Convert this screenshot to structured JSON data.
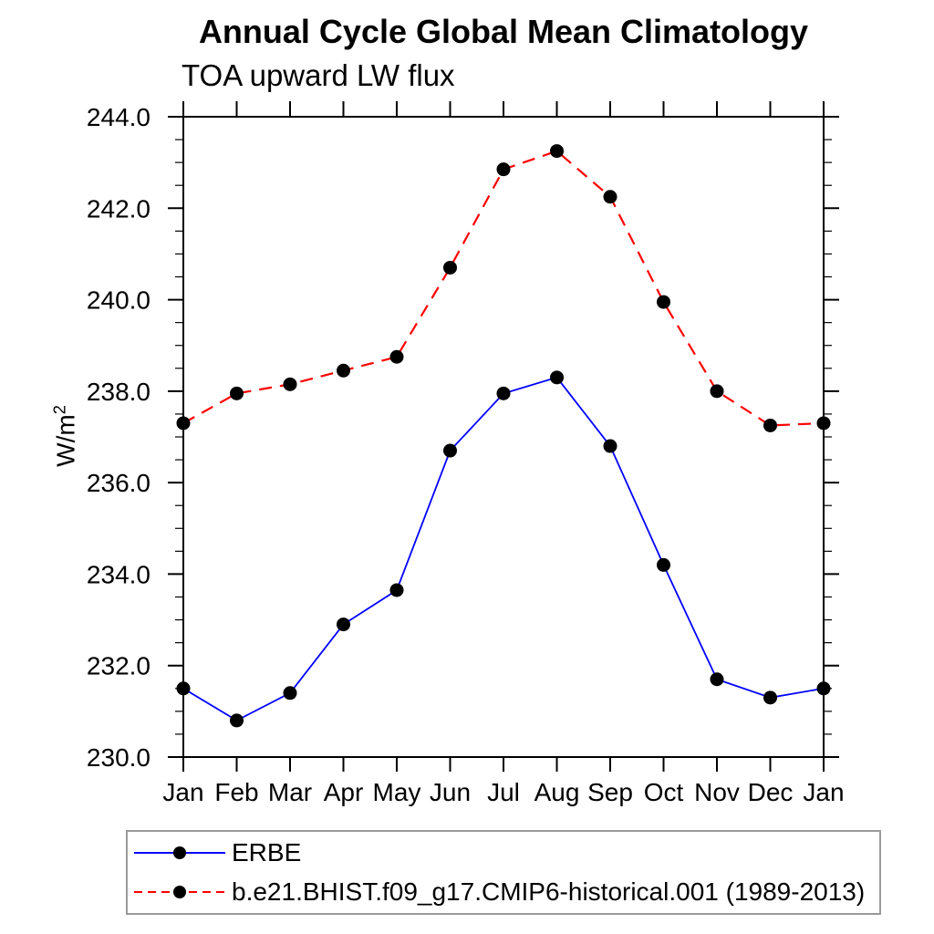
{
  "chart_data": {
    "type": "line",
    "title": "Annual Cycle Global Mean Climatology",
    "subtitle": "TOA upward LW flux",
    "ylabel_base": "W/m",
    "ylabel_sup": "2",
    "x_categories": [
      "Jan",
      "Feb",
      "Mar",
      "Apr",
      "May",
      "Jun",
      "Jul",
      "Aug",
      "Sep",
      "Oct",
      "Nov",
      "Dec",
      "Jan"
    ],
    "ylim": [
      230.0,
      244.0
    ],
    "ytick_major_step": 2.0,
    "ytick_minor_step": 0.5,
    "ytick_labels": [
      "230.0",
      "232.0",
      "234.0",
      "236.0",
      "238.0",
      "240.0",
      "242.0",
      "244.0"
    ],
    "grid": false,
    "legend_position": "bottom-left",
    "marker": "filled-circle",
    "marker_color": "#000000",
    "frame_color": "#000000",
    "legend_border_color": "#9a9a9a",
    "series": [
      {
        "name": "ERBE",
        "color": "#0000ff",
        "line_style": "solid",
        "values": [
          231.5,
          230.8,
          231.4,
          232.9,
          233.65,
          236.7,
          237.95,
          238.3,
          236.8,
          234.2,
          231.7,
          231.3,
          231.5
        ]
      },
      {
        "name": "b.e21.BHIST.f09_g17.CMIP6-historical.001 (1989-2013)",
        "color": "#ff0000",
        "line_style": "dashed",
        "values": [
          237.3,
          237.95,
          238.15,
          238.45,
          238.75,
          240.7,
          242.85,
          243.25,
          242.25,
          239.95,
          238.0,
          237.25,
          237.3
        ]
      }
    ]
  }
}
